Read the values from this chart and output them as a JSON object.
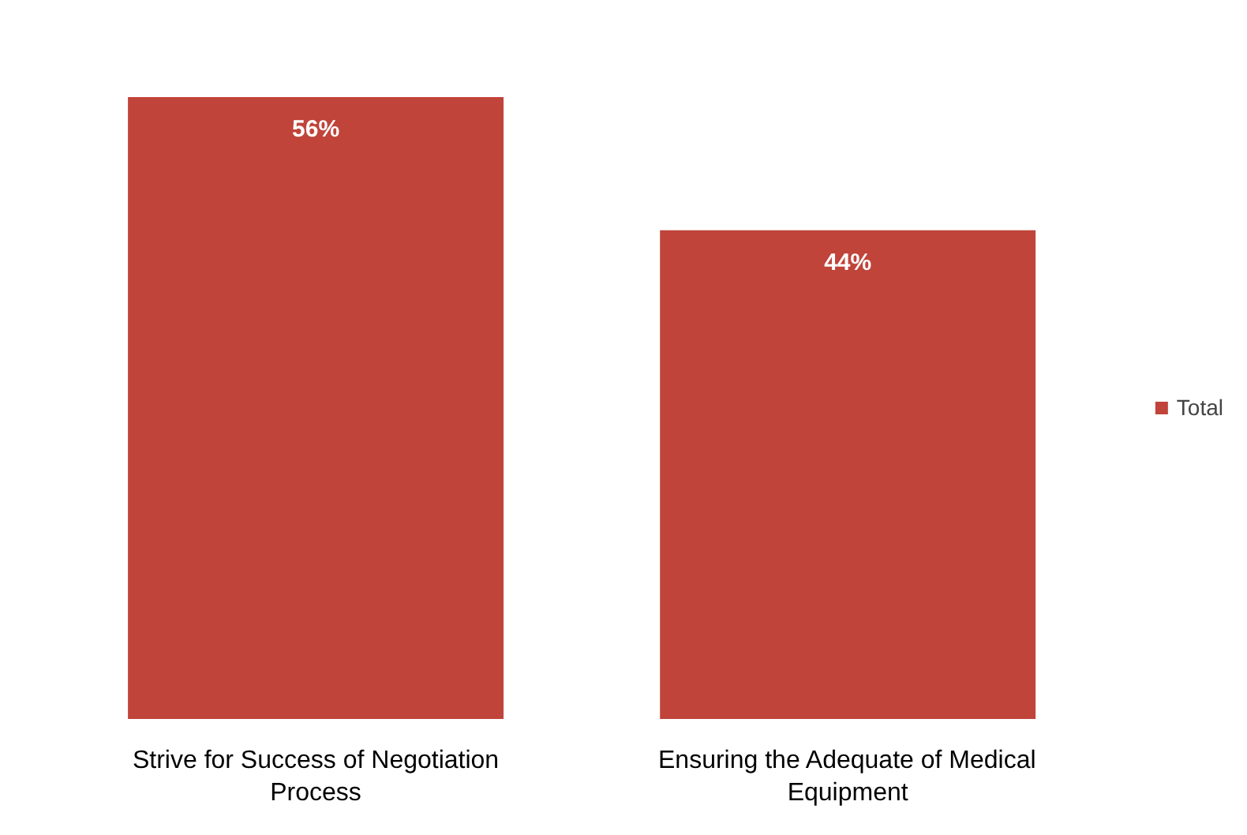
{
  "chart_data": {
    "type": "bar",
    "categories": [
      "Strive for Success of Negotiation Process",
      "Ensuring the Adequate of Medical Equipment"
    ],
    "series": [
      {
        "name": "Total",
        "color": "#c0443a",
        "values": [
          56,
          44
        ],
        "value_labels": [
          "56%",
          "44%"
        ]
      }
    ],
    "legend": "right",
    "grid": false
  }
}
